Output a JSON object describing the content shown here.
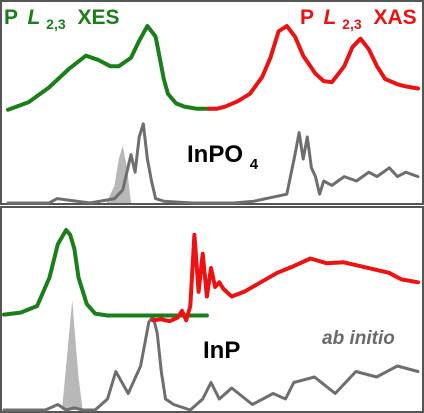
{
  "chart_data": [
    {
      "type": "line",
      "panel": "top",
      "title_left": {
        "element": "P",
        "edge": "L",
        "sub": "2,3",
        "method": "XES"
      },
      "title_right": {
        "element": "P",
        "edge": "L",
        "sub": "2,3",
        "method": "XAS"
      },
      "compound": {
        "base": "InPO",
        "sub": "4"
      },
      "colors": {
        "xes": "#1a7f1a",
        "xas": "#ee1111",
        "calc": "#6e6e6e",
        "calc_fill": "#b8b8b8"
      },
      "series": [
        {
          "key": "xes",
          "x": [
            0.0,
            0.05,
            0.1,
            0.15,
            0.19,
            0.22,
            0.25,
            0.27,
            0.3,
            0.32,
            0.34,
            0.36,
            0.37,
            0.38,
            0.39,
            0.41,
            0.43,
            0.46,
            0.49
          ],
          "y": [
            0.21,
            0.28,
            0.42,
            0.6,
            0.72,
            0.68,
            0.62,
            0.62,
            0.7,
            0.86,
            1.0,
            0.9,
            0.7,
            0.5,
            0.36,
            0.27,
            0.24,
            0.22,
            0.22
          ]
        },
        {
          "key": "xas",
          "x": [
            0.49,
            0.51,
            0.53,
            0.56,
            0.59,
            0.62,
            0.64,
            0.66,
            0.68,
            0.7,
            0.72,
            0.75,
            0.77,
            0.79,
            0.82,
            0.84,
            0.86,
            0.88,
            0.9,
            0.92,
            0.95,
            0.97,
            1.0
          ],
          "y": [
            0.22,
            0.22,
            0.24,
            0.29,
            0.36,
            0.52,
            0.7,
            0.95,
            1.0,
            0.9,
            0.72,
            0.55,
            0.48,
            0.47,
            0.62,
            0.8,
            0.88,
            0.78,
            0.62,
            0.5,
            0.45,
            0.43,
            0.41
          ]
        },
        {
          "key": "calc",
          "x": [
            0.0,
            0.1,
            0.12,
            0.2,
            0.26,
            0.28,
            0.3,
            0.31,
            0.32,
            0.33,
            0.34,
            0.35,
            0.36,
            0.38,
            0.45,
            0.55,
            0.6,
            0.68,
            0.7,
            0.71,
            0.72,
            0.73,
            0.74,
            0.75,
            0.76,
            0.77,
            0.79,
            0.82,
            0.85,
            0.88,
            0.9,
            0.93,
            0.95,
            0.97,
            1.0
          ],
          "y": [
            0.0,
            0.0,
            0.05,
            0.0,
            0.05,
            0.15,
            0.55,
            0.35,
            0.75,
            0.9,
            0.5,
            0.25,
            0.05,
            0.02,
            0.0,
            0.0,
            0.02,
            0.1,
            0.55,
            0.8,
            0.5,
            0.75,
            0.4,
            0.3,
            0.1,
            0.25,
            0.2,
            0.3,
            0.25,
            0.35,
            0.3,
            0.4,
            0.3,
            0.35,
            0.3
          ]
        },
        {
          "key": "calc_fill",
          "x": [
            0.24,
            0.26,
            0.27,
            0.28,
            0.29,
            0.3
          ],
          "y": [
            0.0,
            0.2,
            0.5,
            0.65,
            0.4,
            0.0
          ]
        }
      ]
    },
    {
      "type": "line",
      "panel": "bottom",
      "compound": {
        "base": "InP",
        "sub": ""
      },
      "annotation": "ab initio",
      "series": [
        {
          "key": "xes",
          "x": [
            0.0,
            0.04,
            0.08,
            0.11,
            0.13,
            0.15,
            0.16,
            0.17,
            0.18,
            0.2,
            0.22,
            0.25,
            0.3,
            0.35,
            0.42,
            0.49
          ],
          "y": [
            0.11,
            0.13,
            0.2,
            0.5,
            0.85,
            1.0,
            0.95,
            0.8,
            0.5,
            0.22,
            0.12,
            0.1,
            0.1,
            0.1,
            0.1,
            0.1
          ]
        },
        {
          "key": "xas",
          "x": [
            0.36,
            0.38,
            0.4,
            0.42,
            0.43,
            0.44,
            0.45,
            0.46,
            0.47,
            0.48,
            0.49,
            0.5,
            0.51,
            0.52,
            0.53,
            0.55,
            0.58,
            0.62,
            0.66,
            0.7,
            0.74,
            0.78,
            0.82,
            0.86,
            0.9,
            0.93,
            0.96,
            1.0
          ],
          "y": [
            0.05,
            0.06,
            0.04,
            0.08,
            0.15,
            0.05,
            0.2,
            0.95,
            0.35,
            0.75,
            0.3,
            0.6,
            0.4,
            0.45,
            0.38,
            0.3,
            0.35,
            0.45,
            0.55,
            0.62,
            0.7,
            0.65,
            0.66,
            0.62,
            0.58,
            0.55,
            0.48,
            0.45
          ]
        },
        {
          "key": "calc",
          "x": [
            0.0,
            0.1,
            0.13,
            0.15,
            0.17,
            0.19,
            0.22,
            0.25,
            0.27,
            0.3,
            0.33,
            0.35,
            0.36,
            0.37,
            0.38,
            0.39,
            0.41,
            0.45,
            0.48,
            0.5,
            0.52,
            0.55,
            0.6,
            0.65,
            0.68,
            0.7,
            0.75,
            0.8,
            0.85,
            0.9,
            0.95,
            1.0
          ],
          "y": [
            0.0,
            0.0,
            0.05,
            0.0,
            0.02,
            0.0,
            0.0,
            0.1,
            0.35,
            0.15,
            0.4,
            0.8,
            0.85,
            0.7,
            0.35,
            0.1,
            0.05,
            0.0,
            0.1,
            0.25,
            0.1,
            0.2,
            0.05,
            0.15,
            0.1,
            0.25,
            0.3,
            0.15,
            0.35,
            0.3,
            0.4,
            0.35
          ]
        },
        {
          "key": "calc_fill",
          "x": [
            0.14,
            0.15,
            0.16,
            0.165,
            0.17,
            0.18,
            0.19
          ],
          "y": [
            0.0,
            0.4,
            0.8,
            1.0,
            0.75,
            0.3,
            0.0
          ]
        }
      ]
    }
  ]
}
